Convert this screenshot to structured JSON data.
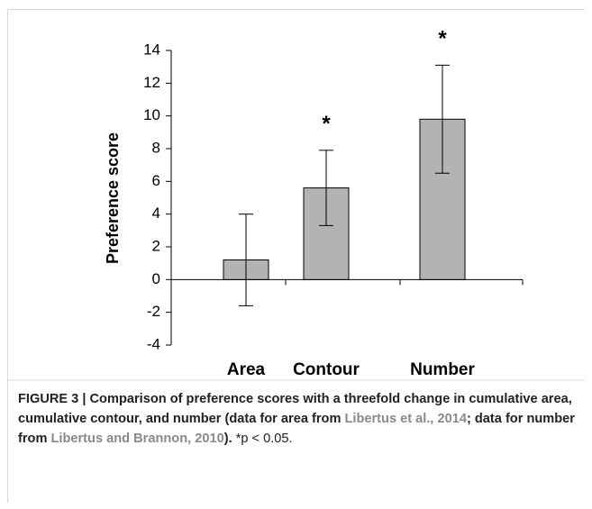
{
  "chart_data": {
    "type": "bar",
    "categories": [
      "Area",
      "Contour",
      "Number"
    ],
    "values": [
      1.2,
      5.6,
      9.8
    ],
    "errors": [
      2.8,
      2.3,
      3.3
    ],
    "color": "#b3b3b3",
    "ylabel": "Preference score",
    "ylim": [
      -4,
      14
    ],
    "yticks": [
      -4,
      -2,
      0,
      2,
      4,
      6,
      8,
      10,
      12,
      14
    ],
    "annotations": [
      {
        "text": "*",
        "category": 1
      },
      {
        "text": "*",
        "category": 2
      }
    ]
  },
  "caption": {
    "label": "FIGURE 3 |",
    "text": "Comparison of preference scores with a threefold change in cumulative area, cumulative contour, and number (data for area from",
    "ref1": "Libertus et al., 2014",
    "mid": "; data for number from",
    "ref2": "Libertus and Brannon, 2010",
    "end": ").",
    "note": "*p < 0.05."
  }
}
